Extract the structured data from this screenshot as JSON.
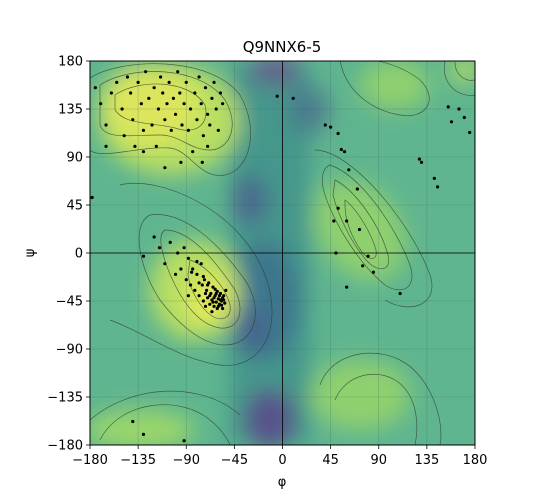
{
  "chart_data": {
    "type": "scatter",
    "title": "Q9NNX6-5",
    "xlabel": "φ",
    "ylabel": "ψ",
    "xlim": [
      -180,
      180
    ],
    "ylim": [
      -180,
      180
    ],
    "xticks": [
      "−180",
      "−135",
      "−90",
      "−45",
      "0",
      "45",
      "90",
      "135",
      "180"
    ],
    "yticks": [
      "−180",
      "−135",
      "−90",
      "−45",
      "0",
      "45",
      "90",
      "135",
      "180"
    ],
    "grid": true,
    "background": "density heatmap with contour lines (viridis-like colormap)",
    "colors": {
      "high": "#e6ea5c",
      "mid": "#6cc18e",
      "low": "#2e7f8f",
      "lowest": "#6b3f8a",
      "points": "#000000"
    },
    "series": [
      {
        "points": [
          [
            -175,
            155
          ],
          [
            -170,
            140
          ],
          [
            -165,
            120
          ],
          [
            -160,
            150
          ],
          [
            -155,
            160
          ],
          [
            -150,
            135
          ],
          [
            -148,
            110
          ],
          [
            -145,
            165
          ],
          [
            -142,
            150
          ],
          [
            -140,
            125
          ],
          [
            -138,
            100
          ],
          [
            -135,
            160
          ],
          [
            -132,
            140
          ],
          [
            -130,
            115
          ],
          [
            -128,
            170
          ],
          [
            -125,
            145
          ],
          [
            -122,
            120
          ],
          [
            -120,
            155
          ],
          [
            -118,
            100
          ],
          [
            -116,
            135
          ],
          [
            -114,
            165
          ],
          [
            -112,
            150
          ],
          [
            -110,
            125
          ],
          [
            -108,
            140
          ],
          [
            -106,
            160
          ],
          [
            -104,
            115
          ],
          [
            -102,
            145
          ],
          [
            -100,
            130
          ],
          [
            -98,
            170
          ],
          [
            -96,
            150
          ],
          [
            -94,
            120
          ],
          [
            -92,
            140
          ],
          [
            -90,
            160
          ],
          [
            -88,
            115
          ],
          [
            -86,
            135
          ],
          [
            -84,
            95
          ],
          [
            -82,
            150
          ],
          [
            -80,
            125
          ],
          [
            -78,
            165
          ],
          [
            -76,
            140
          ],
          [
            -74,
            110
          ],
          [
            -72,
            155
          ],
          [
            -70,
            130
          ],
          [
            -68,
            120
          ],
          [
            -66,
            145
          ],
          [
            -64,
            160
          ],
          [
            -62,
            135
          ],
          [
            -60,
            115
          ],
          [
            -58,
            150
          ],
          [
            -56,
            140
          ],
          [
            -70,
            100
          ],
          [
            -75,
            85
          ],
          [
            -95,
            85
          ],
          [
            -110,
            80
          ],
          [
            -130,
            95
          ],
          [
            -165,
            100
          ],
          [
            -178,
            52
          ],
          [
            -5,
            147
          ],
          [
            10,
            145
          ],
          [
            -130,
            -3
          ],
          [
            -120,
            15
          ],
          [
            -115,
            5
          ],
          [
            -110,
            -10
          ],
          [
            -105,
            10
          ],
          [
            -100,
            -20
          ],
          [
            -98,
            0
          ],
          [
            -95,
            -15
          ],
          [
            -92,
            5
          ],
          [
            -90,
            -25
          ],
          [
            -88,
            -5
          ],
          [
            -86,
            -30
          ],
          [
            -84,
            -15
          ],
          [
            -82,
            -35
          ],
          [
            -80,
            -20
          ],
          [
            -78,
            -40
          ],
          [
            -76,
            -10
          ],
          [
            -75,
            -30
          ],
          [
            -74,
            -45
          ],
          [
            -73,
            -25
          ],
          [
            -72,
            -50
          ],
          [
            -71,
            -35
          ],
          [
            -70,
            -42
          ],
          [
            -69,
            -28
          ],
          [
            -68,
            -48
          ],
          [
            -67,
            -38
          ],
          [
            -66,
            -44
          ],
          [
            -65,
            -32
          ],
          [
            -64,
            -50
          ],
          [
            -63,
            -40
          ],
          [
            -62,
            -46
          ],
          [
            -61,
            -36
          ],
          [
            -60,
            -43
          ],
          [
            -59,
            -48
          ],
          [
            -58,
            -38
          ],
          [
            -57,
            -45
          ],
          [
            -56,
            -52
          ],
          [
            -55,
            -40
          ],
          [
            -54,
            -47
          ],
          [
            -53,
            -35
          ],
          [
            -66,
            -55
          ],
          [
            -64,
            -42
          ],
          [
            -62,
            -38
          ],
          [
            -60,
            -50
          ],
          [
            -58,
            -44
          ],
          [
            -56,
            -42
          ],
          [
            -70,
            -30
          ],
          [
            -68,
            -40
          ],
          [
            -65,
            -46
          ],
          [
            -63,
            -34
          ],
          [
            -61,
            -52
          ],
          [
            -59,
            -40
          ],
          [
            -57,
            -49
          ],
          [
            -55,
            -44
          ],
          [
            -72,
            -38
          ],
          [
            -74,
            -22
          ],
          [
            -78,
            -28
          ],
          [
            -80,
            -8
          ],
          [
            -85,
            -18
          ],
          [
            -88,
            -40
          ],
          [
            40,
            120
          ],
          [
            45,
            118
          ],
          [
            52,
            112
          ],
          [
            55,
            97
          ],
          [
            58,
            95
          ],
          [
            62,
            78
          ],
          [
            70,
            60
          ],
          [
            80,
            -3
          ],
          [
            110,
            -38
          ],
          [
            155,
            137
          ],
          [
            165,
            135
          ],
          [
            170,
            127
          ],
          [
            175,
            113
          ],
          [
            128,
            88
          ],
          [
            145,
            62
          ],
          [
            50,
            0
          ],
          [
            48,
            30
          ],
          [
            52,
            42
          ],
          [
            60,
            30
          ],
          [
            72,
            22
          ],
          [
            60,
            -32
          ],
          [
            75,
            -12
          ],
          [
            85,
            -18
          ],
          [
            130,
            85
          ],
          [
            142,
            70
          ],
          [
            158,
            123
          ],
          [
            -140,
            -158
          ],
          [
            -130,
            -170
          ],
          [
            -92,
            -176
          ]
        ]
      }
    ]
  }
}
